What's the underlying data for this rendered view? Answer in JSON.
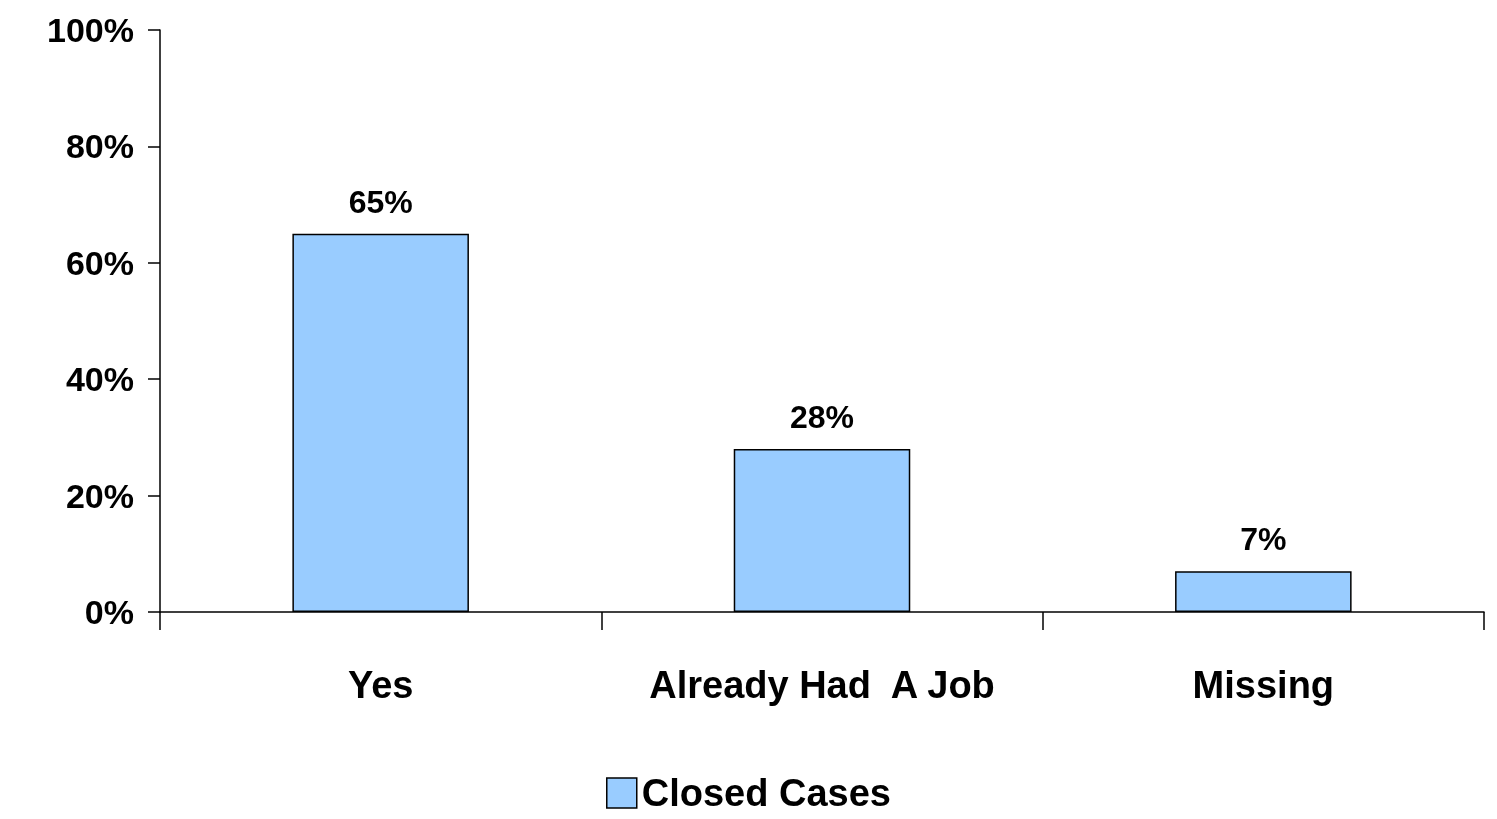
{
  "chart_data": {
    "type": "bar",
    "categories": [
      "Yes",
      "Already Had  A Job",
      "Missing"
    ],
    "series": [
      {
        "name": "Closed Cases",
        "color": "#99ccff",
        "values": [
          65,
          28,
          7
        ],
        "value_labels": [
          "65%",
          "28%",
          "7%"
        ]
      }
    ],
    "ylim": [
      0,
      100
    ],
    "yticks": [
      {
        "value": 0,
        "label": "0%"
      },
      {
        "value": 20,
        "label": "20%"
      },
      {
        "value": 40,
        "label": "40%"
      },
      {
        "value": 60,
        "label": "60%"
      },
      {
        "value": 80,
        "label": "80%"
      },
      {
        "value": 100,
        "label": "100%"
      }
    ],
    "grid": false,
    "legend": "bottom"
  }
}
